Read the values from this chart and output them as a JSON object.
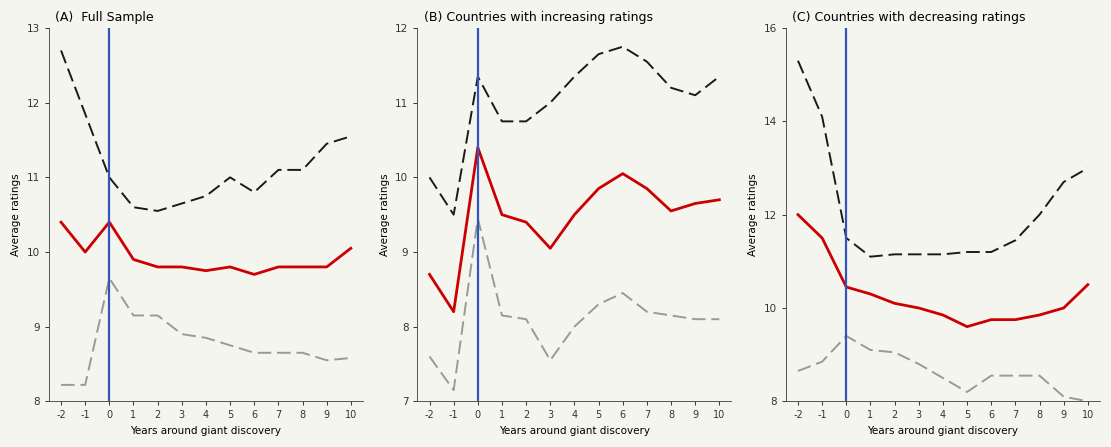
{
  "x": [
    -2,
    -1,
    0,
    1,
    2,
    3,
    4,
    5,
    6,
    7,
    8,
    9,
    10
  ],
  "panels": [
    {
      "title": "(A)  Full Sample",
      "ylim": [
        8,
        13
      ],
      "yticks": [
        8,
        9,
        10,
        11,
        12,
        13
      ],
      "red": [
        10.4,
        10.0,
        10.4,
        9.9,
        9.8,
        9.8,
        9.75,
        9.8,
        9.7,
        9.8,
        9.8,
        9.8,
        10.05
      ],
      "black_dash": [
        12.7,
        11.85,
        11.0,
        10.6,
        10.55,
        10.65,
        10.75,
        11.0,
        10.8,
        11.1,
        11.1,
        11.45,
        11.55
      ],
      "gray_dashdot": [
        8.22,
        8.22,
        9.65,
        9.15,
        9.15,
        8.9,
        8.85,
        8.75,
        8.65,
        8.65,
        8.65,
        8.55,
        8.58
      ]
    },
    {
      "title": "(B) Countries with increasing ratings",
      "ylim": [
        7,
        12
      ],
      "yticks": [
        7,
        8,
        9,
        10,
        11,
        12
      ],
      "red": [
        8.7,
        8.2,
        10.4,
        9.5,
        9.4,
        9.05,
        9.5,
        9.85,
        10.05,
        9.85,
        9.55,
        9.65,
        9.7
      ],
      "black_dash": [
        10.0,
        9.5,
        11.35,
        10.75,
        10.75,
        11.0,
        11.35,
        11.65,
        11.75,
        11.55,
        11.2,
        11.1,
        11.35
      ],
      "gray_dashdot": [
        7.6,
        7.15,
        9.45,
        8.15,
        8.1,
        7.55,
        8.0,
        8.3,
        8.45,
        8.2,
        8.15,
        8.1,
        8.1
      ]
    },
    {
      "title": "(C) Countries with decreasing ratings",
      "ylim": [
        8,
        16
      ],
      "yticks": [
        8,
        10,
        12,
        14,
        16
      ],
      "red": [
        12.0,
        11.5,
        10.45,
        10.3,
        10.1,
        10.0,
        9.85,
        9.6,
        9.75,
        9.75,
        9.85,
        10.0,
        10.5
      ],
      "black_dash": [
        15.3,
        14.1,
        11.5,
        11.1,
        11.15,
        11.15,
        11.15,
        11.2,
        11.2,
        11.45,
        12.0,
        12.7,
        13.0
      ],
      "gray_dashdot": [
        8.65,
        8.85,
        9.4,
        9.1,
        9.05,
        8.8,
        8.5,
        8.2,
        8.55,
        8.55,
        8.55,
        8.1,
        8.0
      ]
    }
  ],
  "xlabel": "Years around giant discovery",
  "ylabel": "Average ratings",
  "vline_x": 0,
  "vline_color": "#3355bb",
  "red_color": "#cc0000",
  "black_dash_color": "#1a1a1a",
  "gray_dashdot_color": "#999999",
  "bg_color": "#f5f5f0"
}
